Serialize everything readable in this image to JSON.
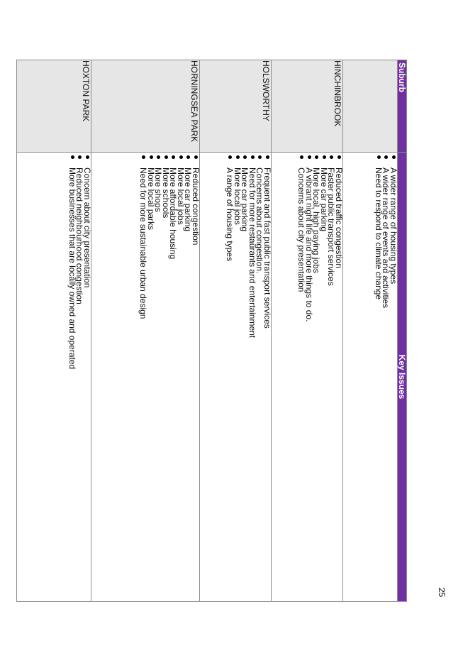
{
  "table": {
    "headers": {
      "suburb": "Suburb",
      "key_issues": "Key Issues"
    },
    "rows": [
      {
        "suburb": "",
        "issues": [
          "A wider range of housing types",
          "A wider range of events and activities",
          "Need to respond to climate change"
        ]
      },
      {
        "suburb": "HINCHINBROOK",
        "issues": [
          "Reduced traffic congestion",
          "Faster public transport services",
          "More car parking",
          "More local, high paying jobs",
          "A vibrant night life and more things to do.",
          "Concerns about city presentation"
        ]
      },
      {
        "suburb": "HOLSWORTHY",
        "issues": [
          "Frequent and fast public transport services",
          "Concerns about congestion.",
          "Need for more restaurants and entertainment",
          "More car parking",
          "More local jobs",
          "A range of housing types"
        ]
      },
      {
        "suburb": "HORNINGSEA PARK",
        "issues": [
          "Reduced congestion",
          "More car parking",
          "More local jobs",
          "More affordable housing",
          "More schools",
          "More shops",
          "More local parks",
          "Need for more sustainable urban design"
        ]
      },
      {
        "suburb": "HOXTON PARK",
        "issues": [
          "Concern about city presentation",
          "Reduced neighbourhood congestion",
          "More businesses that are locally owned and operated"
        ]
      }
    ]
  },
  "page_number": "25"
}
